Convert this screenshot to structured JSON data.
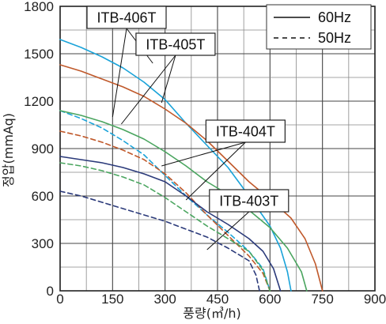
{
  "chart_data": {
    "type": "line",
    "xlabel": "풍량(㎥/h)",
    "ylabel": "정압(mmAq)",
    "xlim": [
      0,
      900
    ],
    "ylim": [
      0,
      1800
    ],
    "x_ticks": [
      "0",
      "150",
      "300",
      "450",
      "600",
      "750",
      "900"
    ],
    "y_ticks": [
      "0",
      "300",
      "600",
      "900",
      "1200",
      "1500",
      "1800"
    ],
    "grid": true,
    "legend": {
      "placement": "top-right",
      "entries": [
        {
          "label": "60Hz",
          "style": "solid"
        },
        {
          "label": "50Hz",
          "style": "dashed"
        }
      ]
    },
    "series": [
      {
        "model": "ITB-406T",
        "freq": "60Hz",
        "color": "#1aa3d9",
        "dash": false,
        "points": [
          [
            0,
            1590
          ],
          [
            60,
            1540
          ],
          [
            120,
            1480
          ],
          [
            180,
            1410
          ],
          [
            240,
            1320
          ],
          [
            300,
            1210
          ],
          [
            360,
            1060
          ],
          [
            420,
            920
          ],
          [
            480,
            780
          ],
          [
            540,
            600
          ],
          [
            600,
            410
          ],
          [
            630,
            270
          ],
          [
            650,
            120
          ],
          [
            660,
            0
          ]
        ]
      },
      {
        "model": "ITB-406T",
        "freq": "50Hz",
        "color": "#1aa3d9",
        "dash": true,
        "points": [
          [
            0,
            1140
          ],
          [
            60,
            1090
          ],
          [
            120,
            1030
          ],
          [
            180,
            950
          ],
          [
            240,
            860
          ],
          [
            300,
            730
          ],
          [
            360,
            600
          ],
          [
            420,
            480
          ],
          [
            480,
            370
          ],
          [
            540,
            250
          ],
          [
            580,
            140
          ],
          [
            600,
            0
          ]
        ]
      },
      {
        "model": "ITB-405T",
        "freq": "60Hz",
        "color": "#c0592b",
        "dash": false,
        "points": [
          [
            0,
            1430
          ],
          [
            60,
            1390
          ],
          [
            120,
            1340
          ],
          [
            180,
            1290
          ],
          [
            240,
            1230
          ],
          [
            300,
            1150
          ],
          [
            360,
            1060
          ],
          [
            420,
            950
          ],
          [
            480,
            820
          ],
          [
            540,
            690
          ],
          [
            600,
            580
          ],
          [
            660,
            460
          ],
          [
            700,
            330
          ],
          [
            730,
            170
          ],
          [
            750,
            0
          ]
        ]
      },
      {
        "model": "ITB-405T",
        "freq": "50Hz",
        "color": "#c0592b",
        "dash": true,
        "points": [
          [
            0,
            1010
          ],
          [
            60,
            980
          ],
          [
            120,
            940
          ],
          [
            180,
            890
          ],
          [
            240,
            830
          ],
          [
            300,
            740
          ],
          [
            360,
            620
          ],
          [
            420,
            480
          ],
          [
            480,
            350
          ],
          [
            540,
            220
          ],
          [
            580,
            110
          ],
          [
            600,
            0
          ]
        ]
      },
      {
        "model": "ITB-404T",
        "freq": "60Hz",
        "color": "#4aa55f",
        "dash": false,
        "points": [
          [
            0,
            1140
          ],
          [
            60,
            1110
          ],
          [
            120,
            1070
          ],
          [
            180,
            1020
          ],
          [
            240,
            960
          ],
          [
            300,
            880
          ],
          [
            360,
            790
          ],
          [
            420,
            690
          ],
          [
            480,
            610
          ],
          [
            540,
            510
          ],
          [
            600,
            400
          ],
          [
            650,
            270
          ],
          [
            690,
            120
          ],
          [
            705,
            0
          ]
        ]
      },
      {
        "model": "ITB-404T",
        "freq": "50Hz",
        "color": "#4aa55f",
        "dash": true,
        "points": [
          [
            0,
            810
          ],
          [
            60,
            790
          ],
          [
            120,
            760
          ],
          [
            180,
            720
          ],
          [
            240,
            670
          ],
          [
            300,
            590
          ],
          [
            360,
            500
          ],
          [
            420,
            410
          ],
          [
            480,
            330
          ],
          [
            540,
            250
          ],
          [
            580,
            130
          ],
          [
            600,
            0
          ]
        ]
      },
      {
        "model": "ITB-403T",
        "freq": "60Hz",
        "color": "#2b3a7a",
        "dash": false,
        "points": [
          [
            0,
            850
          ],
          [
            60,
            830
          ],
          [
            120,
            810
          ],
          [
            180,
            780
          ],
          [
            240,
            740
          ],
          [
            300,
            690
          ],
          [
            360,
            600
          ],
          [
            420,
            500
          ],
          [
            480,
            420
          ],
          [
            540,
            330
          ],
          [
            580,
            250
          ],
          [
            610,
            140
          ],
          [
            630,
            0
          ]
        ]
      },
      {
        "model": "ITB-403T",
        "freq": "50Hz",
        "color": "#2b3a7a",
        "dash": true,
        "points": [
          [
            0,
            630
          ],
          [
            60,
            600
          ],
          [
            120,
            560
          ],
          [
            180,
            520
          ],
          [
            240,
            480
          ],
          [
            300,
            440
          ],
          [
            360,
            390
          ],
          [
            420,
            340
          ],
          [
            480,
            270
          ],
          [
            540,
            190
          ],
          [
            560,
            100
          ],
          [
            570,
            0
          ]
        ]
      }
    ],
    "annotations": [
      {
        "text": "ITB-406T",
        "box": [
          190,
          1730
        ],
        "targets": [
          [
            150,
            1100
          ],
          [
            265,
            1440
          ]
        ]
      },
      {
        "text": "ITB-405T",
        "box": [
          330,
          1560
        ],
        "targets": [
          [
            175,
            1055
          ],
          [
            290,
            1190
          ]
        ]
      },
      {
        "text": "ITB-404T",
        "box": [
          530,
          1010
        ],
        "targets": [
          [
            290,
            790
          ],
          [
            360,
            575
          ]
        ]
      },
      {
        "text": "ITB-403T",
        "box": [
          540,
          570
        ],
        "targets": [
          [
            420,
            260
          ],
          [
            475,
            500
          ]
        ]
      }
    ]
  }
}
